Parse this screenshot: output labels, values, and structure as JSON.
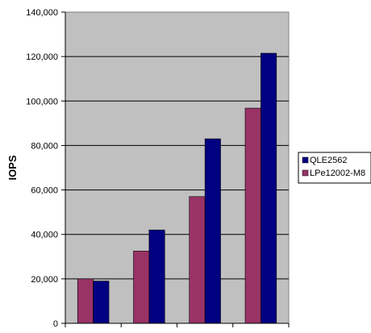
{
  "chart_data": {
    "type": "bar",
    "title": "",
    "xlabel": "",
    "ylabel": "IOPS",
    "ylim": [
      0,
      140000
    ],
    "yticks": [
      "0",
      "20,000",
      "40,000",
      "60,000",
      "80,000",
      "100,000",
      "120,000",
      "140,000"
    ],
    "categories": [
      "",
      "",
      "",
      ""
    ],
    "series": [
      {
        "name": "LPe12002-M8",
        "values": [
          20000,
          32500,
          57000,
          96800
        ],
        "color": "#993366"
      },
      {
        "name": "QLE2562",
        "values": [
          19000,
          42000,
          83000,
          121500
        ],
        "color": "#000080"
      }
    ],
    "legend": {
      "position": "right",
      "order": [
        "QLE2562",
        "LPe12002-M8"
      ]
    },
    "plot_background": "#c0c0c0",
    "grid": true
  }
}
